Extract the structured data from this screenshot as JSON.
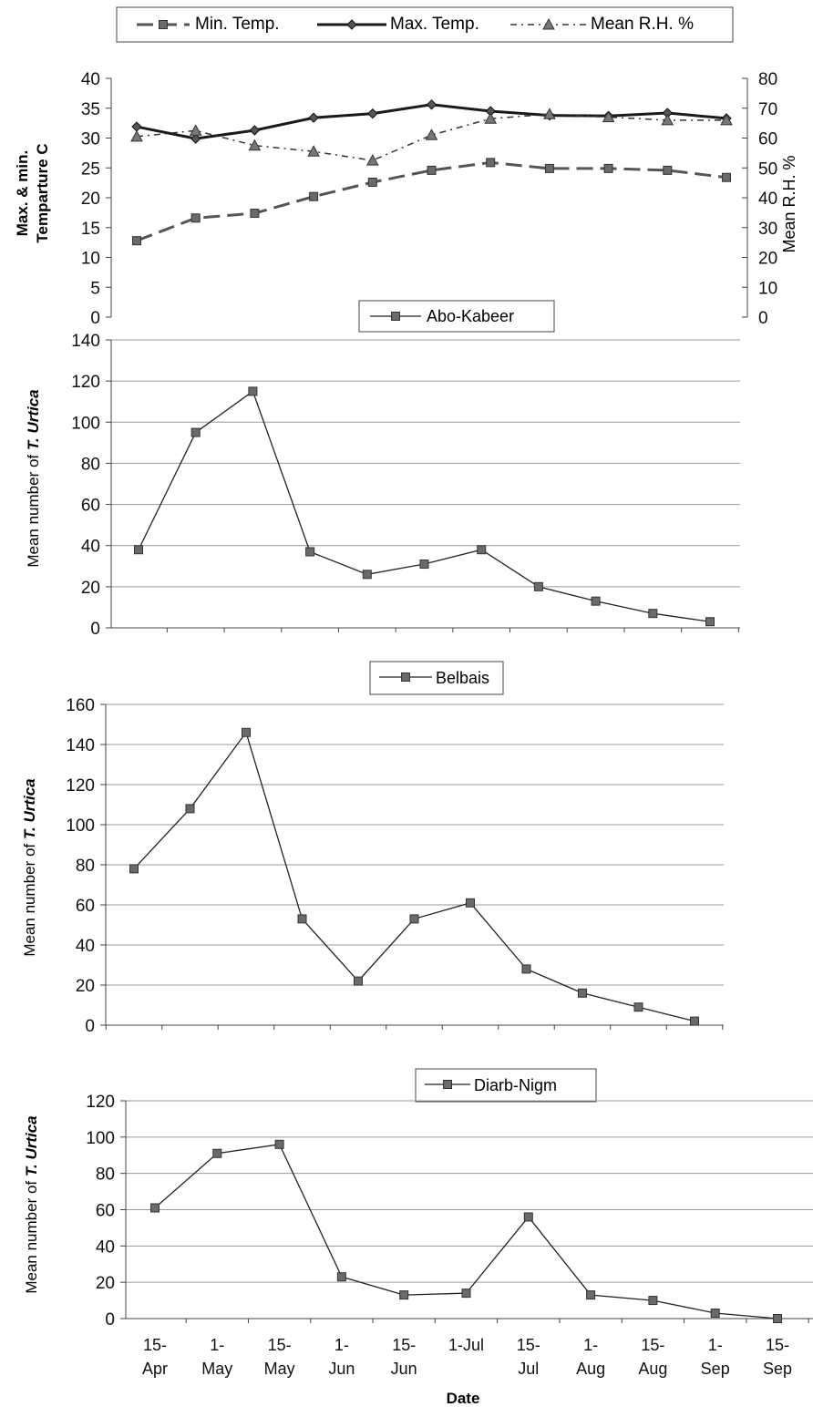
{
  "colors": {
    "axis": "#444444",
    "grid": "#9a9a9a",
    "line_dark": "#1a1a1a",
    "min_temp": "#555555",
    "rh": "#333333",
    "marker_square": "#6a6a6a",
    "text": "#111111"
  },
  "categories": [
    "15-Apr",
    "1-May",
    "15-May",
    "1-Jun",
    "15-Jun",
    "1-Jul",
    "15-Jul",
    "1-Aug",
    "15-Aug",
    "1-Sep",
    "15-Sep"
  ],
  "category_labels": [
    [
      "15-",
      "Apr"
    ],
    [
      "1-",
      "May"
    ],
    [
      "15-",
      "May"
    ],
    [
      "1-",
      "Jun"
    ],
    [
      "15-",
      "Jun"
    ],
    [
      "1-Jul",
      ""
    ],
    [
      "15-",
      "Jul"
    ],
    [
      "1-",
      "Aug"
    ],
    [
      "15-",
      "Aug"
    ],
    [
      "1-",
      "Sep"
    ],
    [
      "15-",
      "Sep"
    ]
  ],
  "xlabel": "Date",
  "chart_data": [
    {
      "type": "line",
      "ylabel_lines": [
        "Max. & min.",
        "Temparture C"
      ],
      "y2label": "Mean R.H. %",
      "ylim": [
        0,
        40
      ],
      "yticks": [
        0,
        5,
        10,
        15,
        20,
        25,
        30,
        35,
        40
      ],
      "y2lim": [
        0,
        80
      ],
      "y2ticks": [
        0,
        10,
        20,
        30,
        40,
        50,
        60,
        70,
        80
      ],
      "grid": false,
      "legend": "top",
      "series": [
        {
          "name": "Min. Temp.",
          "axis": "left",
          "marker": "square",
          "style": "dashed",
          "values": [
            12.8,
            16.6,
            17.4,
            20.2,
            22.6,
            24.6,
            25.9,
            24.9,
            24.9,
            24.6,
            23.4
          ]
        },
        {
          "name": "Max. Temp.",
          "axis": "left",
          "marker": "diamond",
          "style": "solid",
          "values": [
            31.9,
            29.9,
            31.3,
            33.4,
            34.1,
            35.6,
            34.5,
            33.8,
            33.7,
            34.2,
            33.3
          ]
        },
        {
          "name": "Mean R.H. %",
          "axis": "right",
          "marker": "triangle",
          "style": "dashdot",
          "values": [
            60.5,
            62.5,
            57.5,
            55.5,
            52.5,
            61,
            66.5,
            68,
            67,
            66,
            66
          ]
        }
      ]
    },
    {
      "type": "line",
      "legend_label": "Abo-Kabeer",
      "ylabel_prefix": "Mean number of ",
      "ylabel_italic": "T. Urtica",
      "ylim": [
        0,
        140
      ],
      "yticks": [
        0,
        20,
        40,
        60,
        80,
        100,
        120,
        140
      ],
      "grid": true,
      "series": [
        {
          "name": "Abo-Kabeer",
          "values": [
            38,
            95,
            115,
            37,
            26,
            31,
            38,
            20,
            13,
            7,
            3
          ]
        }
      ]
    },
    {
      "type": "line",
      "legend_label": "Belbais",
      "ylabel_prefix": "Mean number of ",
      "ylabel_italic": "T. Urtica",
      "ylim": [
        0,
        160
      ],
      "yticks": [
        0,
        20,
        40,
        60,
        80,
        100,
        120,
        140,
        160
      ],
      "grid": true,
      "series": [
        {
          "name": "Belbais",
          "values": [
            78,
            108,
            146,
            53,
            22,
            53,
            61,
            28,
            16,
            9,
            2
          ]
        }
      ]
    },
    {
      "type": "line",
      "legend_label": "Diarb-Nigm",
      "ylabel_prefix": "Mean number of ",
      "ylabel_italic": "T. Urtica",
      "ylim": [
        0,
        120
      ],
      "yticks": [
        0,
        20,
        40,
        60,
        80,
        100,
        120
      ],
      "grid": true,
      "series": [
        {
          "name": "Diarb-Nigm",
          "values": [
            61,
            91,
            96,
            23,
            13,
            14,
            56,
            13,
            10,
            3,
            0
          ]
        }
      ]
    }
  ]
}
